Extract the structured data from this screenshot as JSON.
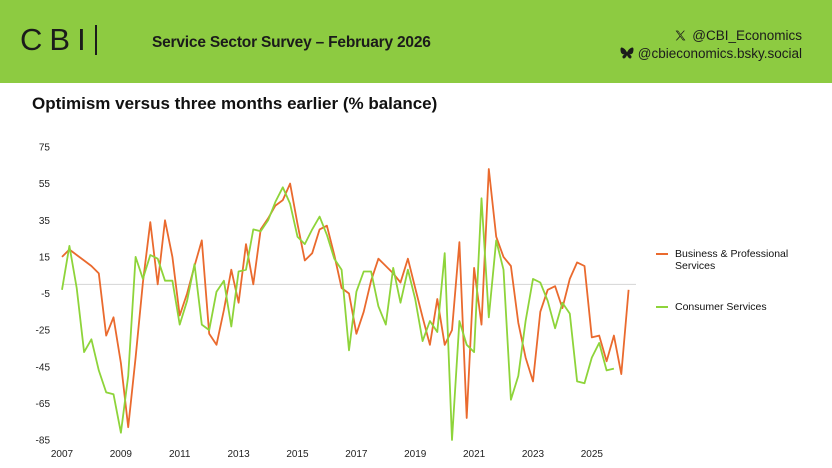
{
  "header": {
    "logo_text": "CBI",
    "title": "Service Sector Survey – February 2026",
    "x_handle": "@CBI_Economics",
    "bsky_handle": "@cbieconomics.bsky.social",
    "banner_color": "#8dcb41"
  },
  "chart_data": {
    "type": "line",
    "title": "Optimism versus three months earlier (% balance)",
    "xlabel": "",
    "ylabel": "",
    "ylim": [
      -85,
      75
    ],
    "yticks": [
      75,
      55,
      35,
      15,
      -5,
      -25,
      -45,
      -65,
      -85
    ],
    "xlim": [
      2007,
      2026.5
    ],
    "xticks": [
      2007,
      2009,
      2011,
      2013,
      2015,
      2017,
      2019,
      2021,
      2023,
      2025
    ],
    "zero_line": 0,
    "legend_position": "right",
    "series": [
      {
        "name": "Business & Professional Services",
        "color": "#ea6a2e",
        "points": [
          [
            2007.0,
            15
          ],
          [
            2007.25,
            19
          ],
          [
            2007.5,
            16
          ],
          [
            2007.75,
            13
          ],
          [
            2008.0,
            10
          ],
          [
            2008.25,
            6
          ],
          [
            2008.5,
            -28
          ],
          [
            2008.75,
            -18
          ],
          [
            2009.0,
            -43
          ],
          [
            2009.25,
            -78
          ],
          [
            2009.5,
            -40
          ],
          [
            2009.75,
            1
          ],
          [
            2010.0,
            34
          ],
          [
            2010.25,
            0
          ],
          [
            2010.5,
            35
          ],
          [
            2010.75,
            15
          ],
          [
            2011.0,
            -17
          ],
          [
            2011.25,
            -5
          ],
          [
            2011.5,
            10
          ],
          [
            2011.75,
            24
          ],
          [
            2012.0,
            -27
          ],
          [
            2012.25,
            -33
          ],
          [
            2012.5,
            -14
          ],
          [
            2012.75,
            8
          ],
          [
            2013.0,
            -10
          ],
          [
            2013.25,
            22
          ],
          [
            2013.5,
            0
          ],
          [
            2013.75,
            30
          ],
          [
            2014.0,
            36
          ],
          [
            2014.25,
            43
          ],
          [
            2014.5,
            46
          ],
          [
            2014.75,
            55
          ],
          [
            2015.0,
            33
          ],
          [
            2015.25,
            13
          ],
          [
            2015.5,
            17
          ],
          [
            2015.75,
            30
          ],
          [
            2016.0,
            32
          ],
          [
            2016.25,
            16
          ],
          [
            2016.5,
            -2
          ],
          [
            2016.75,
            -5
          ],
          [
            2017.0,
            -27
          ],
          [
            2017.25,
            -15
          ],
          [
            2017.5,
            2
          ],
          [
            2017.75,
            14
          ],
          [
            2018.0,
            10
          ],
          [
            2018.25,
            6
          ],
          [
            2018.5,
            1
          ],
          [
            2018.75,
            14
          ],
          [
            2019.0,
            -2
          ],
          [
            2019.25,
            -18
          ],
          [
            2019.5,
            -33
          ],
          [
            2019.75,
            -8
          ],
          [
            2020.0,
            -33
          ],
          [
            2020.25,
            -25
          ],
          [
            2020.5,
            23
          ],
          [
            2020.75,
            -73
          ],
          [
            2021.0,
            9
          ],
          [
            2021.25,
            -22
          ],
          [
            2021.5,
            63
          ],
          [
            2021.75,
            26
          ],
          [
            2022.0,
            15
          ],
          [
            2022.25,
            10
          ],
          [
            2022.5,
            -21
          ],
          [
            2022.75,
            -40
          ],
          [
            2023.0,
            -53
          ],
          [
            2023.25,
            -15
          ],
          [
            2023.5,
            -3
          ],
          [
            2023.75,
            -1
          ],
          [
            2024.0,
            -13
          ],
          [
            2024.25,
            3
          ],
          [
            2024.5,
            12
          ],
          [
            2024.75,
            10
          ],
          [
            2025.0,
            -29
          ],
          [
            2025.25,
            -28
          ],
          [
            2025.5,
            -42
          ],
          [
            2025.75,
            -28
          ],
          [
            2026.0,
            -49
          ],
          [
            2026.25,
            -3
          ]
        ]
      },
      {
        "name": "Consumer Services",
        "color": "#8ed43a",
        "points": [
          [
            2007.0,
            -3
          ],
          [
            2007.25,
            21
          ],
          [
            2007.5,
            -2
          ],
          [
            2007.75,
            -37
          ],
          [
            2008.0,
            -30
          ],
          [
            2008.25,
            -47
          ],
          [
            2008.5,
            -59
          ],
          [
            2008.75,
            -60
          ],
          [
            2009.0,
            -81
          ],
          [
            2009.25,
            -50
          ],
          [
            2009.5,
            15
          ],
          [
            2009.75,
            3
          ],
          [
            2010.0,
            16
          ],
          [
            2010.25,
            14
          ],
          [
            2010.5,
            2
          ],
          [
            2010.75,
            2
          ],
          [
            2011.0,
            -22
          ],
          [
            2011.25,
            -9
          ],
          [
            2011.5,
            11
          ],
          [
            2011.75,
            -22
          ],
          [
            2012.0,
            -25
          ],
          [
            2012.25,
            -4
          ],
          [
            2012.5,
            2
          ],
          [
            2012.75,
            -23
          ],
          [
            2013.0,
            7
          ],
          [
            2013.25,
            8
          ],
          [
            2013.5,
            30
          ],
          [
            2013.75,
            29
          ],
          [
            2014.0,
            35
          ],
          [
            2014.25,
            45
          ],
          [
            2014.5,
            53
          ],
          [
            2014.75,
            44
          ],
          [
            2015.0,
            26
          ],
          [
            2015.25,
            22
          ],
          [
            2015.5,
            30
          ],
          [
            2015.75,
            37
          ],
          [
            2016.0,
            27
          ],
          [
            2016.25,
            14
          ],
          [
            2016.5,
            8
          ],
          [
            2016.75,
            -36
          ],
          [
            2017.0,
            -4
          ],
          [
            2017.25,
            7
          ],
          [
            2017.5,
            7
          ],
          [
            2017.75,
            -12
          ],
          [
            2018.0,
            -22
          ],
          [
            2018.25,
            9
          ],
          [
            2018.5,
            -10
          ],
          [
            2018.75,
            8
          ],
          [
            2019.0,
            -8
          ],
          [
            2019.25,
            -31
          ],
          [
            2019.5,
            -20
          ],
          [
            2019.75,
            -26
          ],
          [
            2020.0,
            17
          ],
          [
            2020.25,
            -85
          ],
          [
            2020.5,
            -20
          ],
          [
            2020.75,
            -33
          ],
          [
            2021.0,
            -37
          ],
          [
            2021.25,
            47
          ],
          [
            2021.5,
            -18
          ],
          [
            2021.75,
            24
          ],
          [
            2022.0,
            8
          ],
          [
            2022.25,
            -63
          ],
          [
            2022.5,
            -50
          ],
          [
            2022.75,
            -20
          ],
          [
            2023.0,
            3
          ],
          [
            2023.25,
            1
          ],
          [
            2023.5,
            -9
          ],
          [
            2023.75,
            -24
          ],
          [
            2024.0,
            -10
          ],
          [
            2024.25,
            -16
          ],
          [
            2024.5,
            -53
          ],
          [
            2024.75,
            -54
          ],
          [
            2025.0,
            -40
          ],
          [
            2025.25,
            -32
          ],
          [
            2025.5,
            -47
          ],
          [
            2025.75,
            -46
          ]
        ]
      }
    ]
  }
}
